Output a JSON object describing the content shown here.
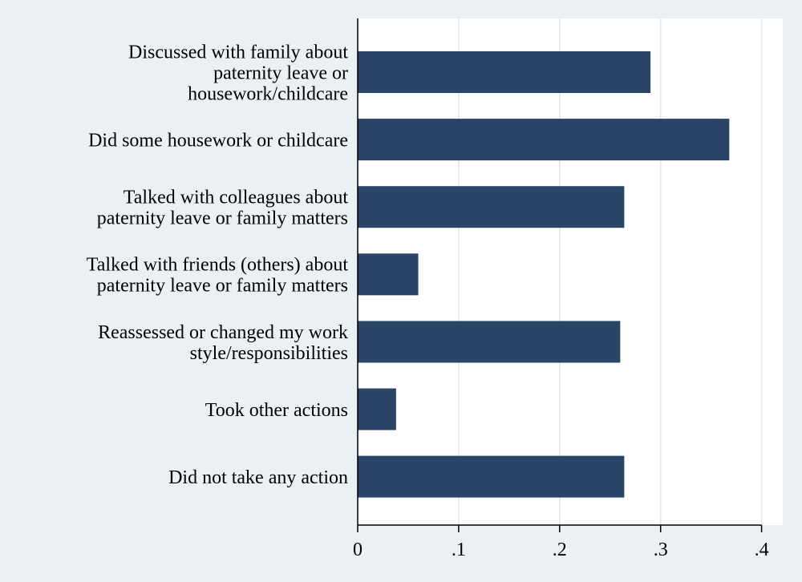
{
  "chart_data": {
    "type": "bar",
    "orientation": "horizontal",
    "categories": [
      [
        "Discussed with family about",
        "paternity leave or",
        "housework/childcare"
      ],
      [
        "Did some housework or childcare"
      ],
      [
        "Talked with colleagues about",
        "paternity leave or family matters"
      ],
      [
        "Talked with friends (others) about",
        "paternity leave or family matters"
      ],
      [
        "Reassessed or changed my work",
        "style/responsibilities"
      ],
      [
        "Took other actions"
      ],
      [
        "Did not take any action"
      ]
    ],
    "values": [
      0.29,
      0.368,
      0.264,
      0.06,
      0.26,
      0.038,
      0.264
    ],
    "xlim": [
      0,
      0.42
    ],
    "x_ticks": [
      0,
      0.1,
      0.2,
      0.3,
      0.4
    ],
    "x_tick_labels": [
      "0",
      ".1",
      ".2",
      ".3",
      ".4"
    ],
    "title": "",
    "xlabel": "",
    "ylabel": "",
    "grid": "vertical",
    "legend": "none",
    "colors": {
      "bar": "#2a4567",
      "plot_background": "#ffffff",
      "page_background": "#eaf0f3",
      "grid": "#dfe8ec",
      "axis": "#000000"
    }
  }
}
